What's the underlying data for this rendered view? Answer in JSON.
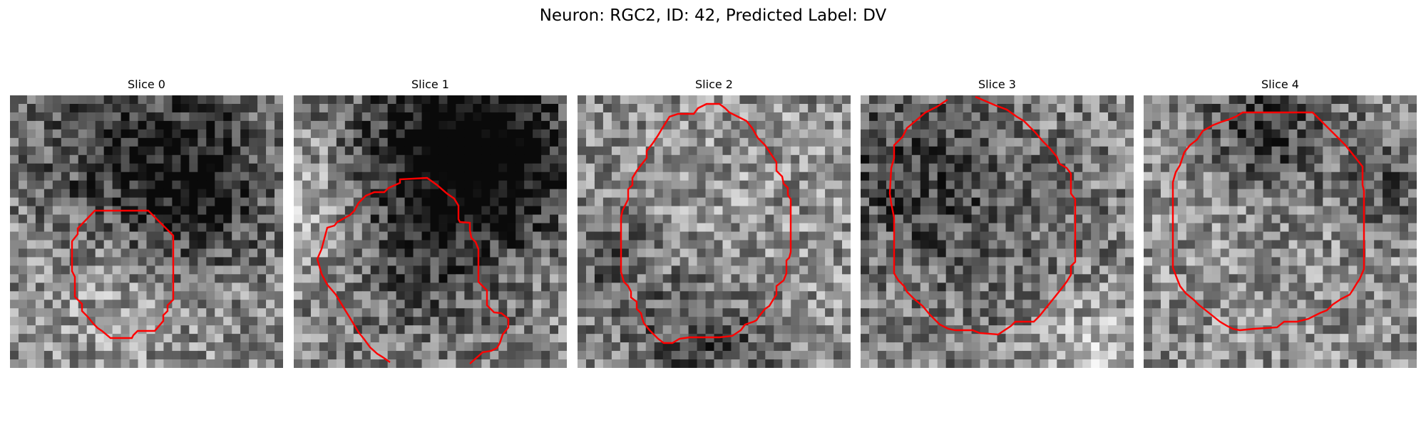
{
  "figure": {
    "title": "Neuron: RGC2, ID: 42, Predicted Label: DV"
  },
  "panels": [
    {
      "title": "Slice 0"
    },
    {
      "title": "Slice 1"
    },
    {
      "title": "Slice 2"
    },
    {
      "title": "Slice 3"
    },
    {
      "title": "Slice 4"
    }
  ],
  "contour_color": "#ff0000"
}
